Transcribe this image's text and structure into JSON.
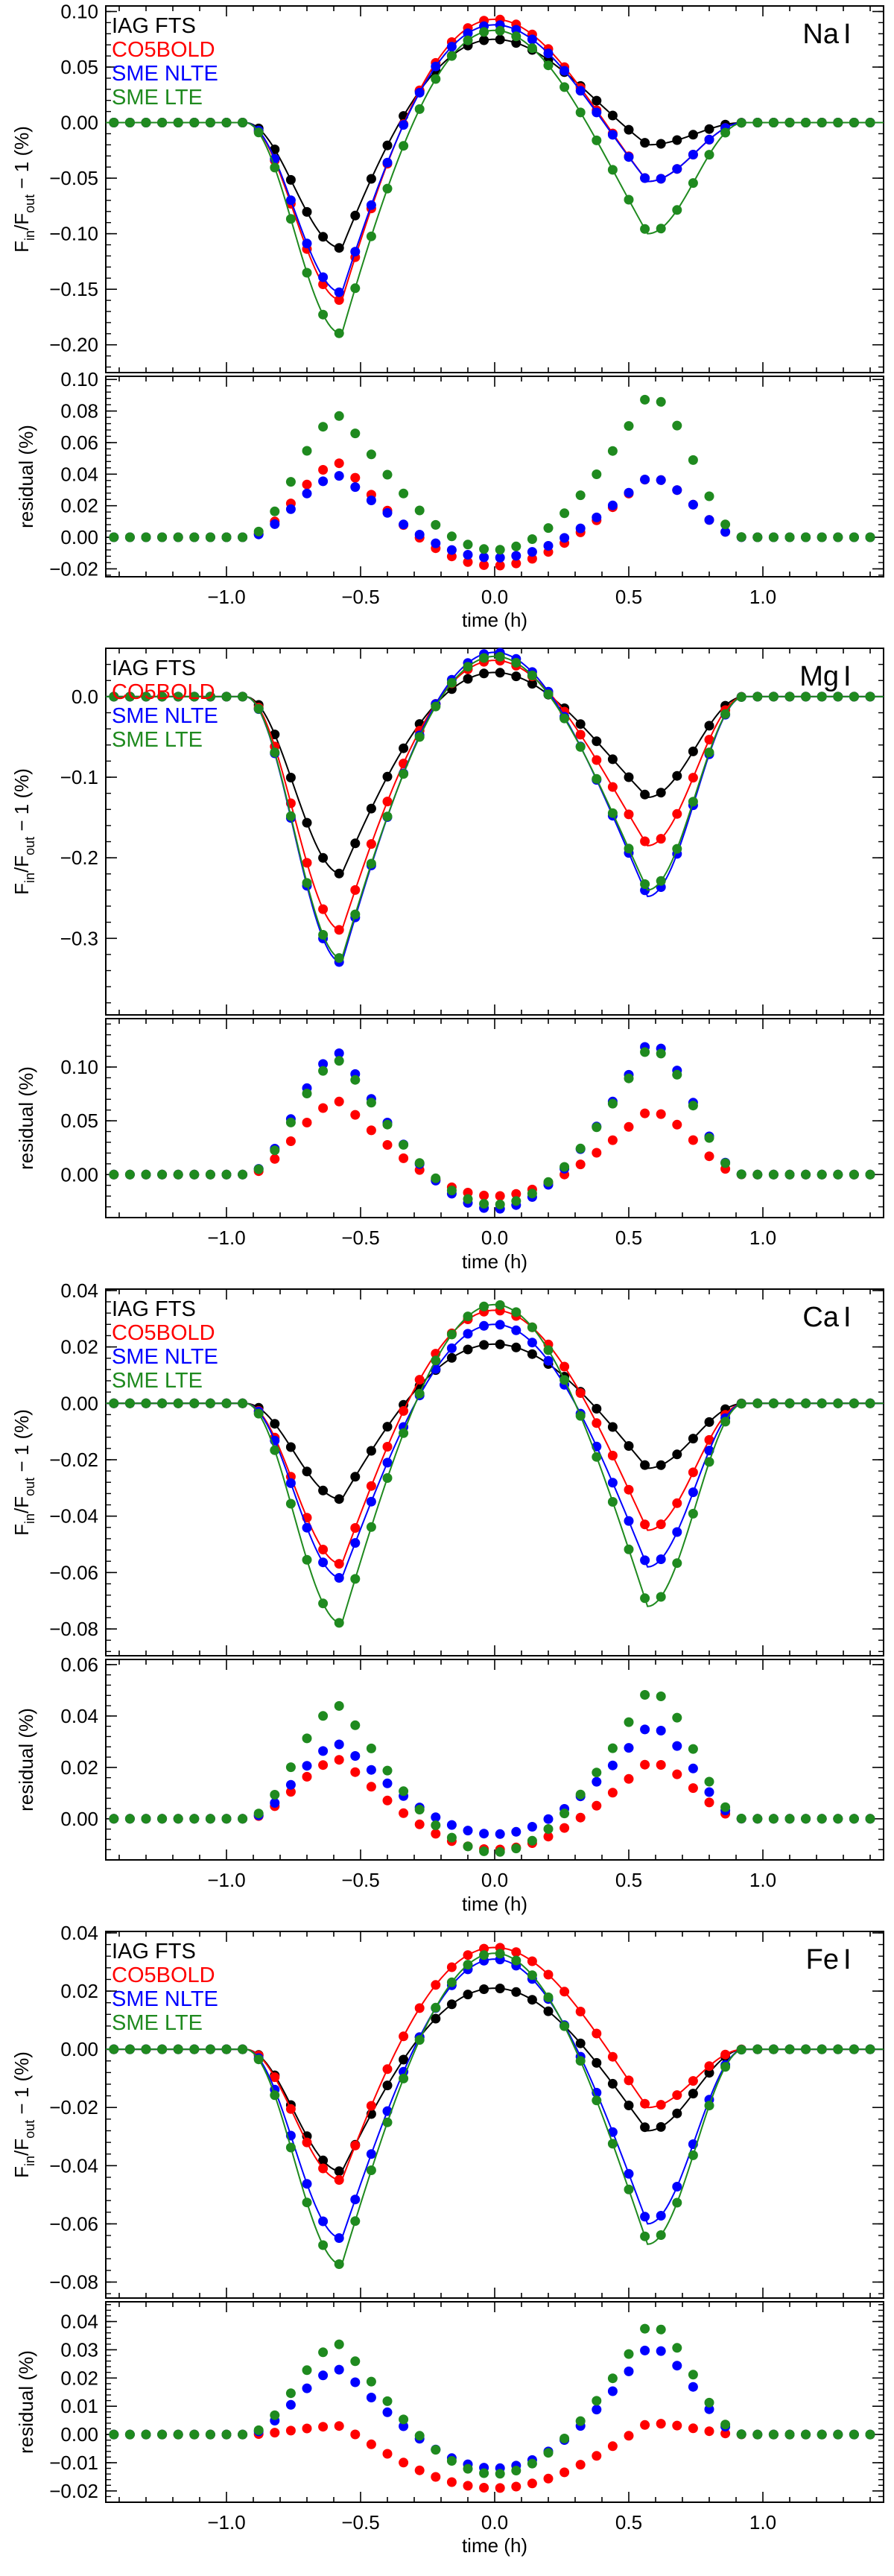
{
  "colors": {
    "IAG FTS": "#000000",
    "CO5BOLD": "#ff0000",
    "SME NLTE": "#0000ff",
    "SME LTE": "#1f8a1f"
  },
  "chart_data": [
    {
      "type": "line",
      "element": "Na I",
      "element_label": "Na",
      "element_suffix": "I",
      "title": "",
      "legend": [
        "IAG FTS",
        "CO5BOLD",
        "SME NLTE",
        "SME LTE"
      ],
      "legend_position": "top-left",
      "xlabel": "time (h)",
      "xlim": [
        -1.45,
        1.45
      ],
      "xticks": [
        -1.0,
        -0.5,
        0.0,
        0.5,
        1.0
      ],
      "xtick_labels": [
        "−1.0",
        "−0.5",
        "0.0",
        "0.5",
        "1.0"
      ],
      "top": {
        "ylabel": "F_in/F_out − 1 (%)",
        "ylim": [
          -0.225,
          0.105
        ],
        "yticks": [
          0.1,
          0.05,
          0.0,
          -0.05,
          -0.1,
          -0.15,
          -0.2
        ],
        "ytick_labels": [
          "0.10",
          "0.05",
          "0.00",
          "−0.05",
          "−0.10",
          "−0.15",
          "−0.20"
        ],
        "profile": {
          "IAG FTS": [
            -0.113,
            0.075,
            -0.02
          ],
          "CO5BOLD": [
            -0.16,
            0.093,
            -0.053
          ],
          "SME NLTE": [
            -0.153,
            0.088,
            -0.053
          ],
          "SME LTE": [
            -0.19,
            0.083,
            -0.1
          ]
        }
      },
      "residual": {
        "ylabel": "residual (%)",
        "ylim": [
          -0.025,
          0.102
        ],
        "yticks": [
          0.1,
          0.08,
          0.06,
          0.04,
          0.02,
          0.0,
          -0.02
        ],
        "ytick_labels": [
          "0.10",
          "0.08",
          "0.06",
          "0.04",
          "0.02",
          "0.00",
          "−0.02"
        ],
        "profile": {
          "CO5BOLD": [
            0.047,
            -0.018,
            0.038
          ],
          "SME NLTE": [
            0.039,
            -0.013,
            0.038
          ],
          "SME LTE": [
            0.077,
            -0.008,
            0.09
          ]
        }
      }
    },
    {
      "type": "line",
      "element": "Mg I",
      "element_label": "Mg",
      "element_suffix": "I",
      "title": "",
      "legend": [
        "IAG FTS",
        "CO5BOLD",
        "SME NLTE",
        "SME LTE"
      ],
      "legend_position": "top-left",
      "xlabel": "time (h)",
      "xlim": [
        -1.45,
        1.45
      ],
      "xticks": [
        -1.0,
        -0.5,
        0.0,
        0.5,
        1.0
      ],
      "xtick_labels": [
        "−1.0",
        "−0.5",
        "0.0",
        "0.5",
        "1.0"
      ],
      "top": {
        "ylabel": "F_in/F_out − 1 (%)",
        "ylim": [
          -0.395,
          0.06
        ],
        "yticks": [
          0.0,
          -0.1,
          -0.2,
          -0.3
        ],
        "ytick_labels": [
          "0.0",
          "−0.1",
          "−0.2",
          "−0.3"
        ],
        "profile": {
          "IAG FTS": [
            -0.22,
            0.03,
            -0.125
          ],
          "CO5BOLD": [
            -0.29,
            0.045,
            -0.185
          ],
          "SME NLTE": [
            -0.33,
            0.055,
            -0.248
          ],
          "SME LTE": [
            -0.325,
            0.05,
            -0.24
          ]
        }
      },
      "residual": {
        "ylabel": "residual (%)",
        "ylim": [
          -0.04,
          0.145
        ],
        "yticks": [
          0.1,
          0.05,
          0.0
        ],
        "ytick_labels": [
          "0.10",
          "0.05",
          "0.00"
        ],
        "profile": {
          "CO5BOLD": [
            0.068,
            -0.02,
            0.059
          ],
          "SME NLTE": [
            0.113,
            -0.032,
            0.123
          ],
          "SME LTE": [
            0.106,
            -0.028,
            0.118
          ]
        }
      }
    },
    {
      "type": "line",
      "element": "Ca I",
      "element_label": "Ca",
      "element_suffix": "I",
      "title": "",
      "legend": [
        "IAG FTS",
        "CO5BOLD",
        "SME NLTE",
        "SME LTE"
      ],
      "legend_position": "top-left",
      "xlabel": "time (h)",
      "xlim": [
        -1.45,
        1.45
      ],
      "xticks": [
        -1.0,
        -0.5,
        0.0,
        0.5,
        1.0
      ],
      "xtick_labels": [
        "−1.0",
        "−0.5",
        "0.0",
        "0.5",
        "1.0"
      ],
      "top": {
        "ylabel": "F_in/F_out − 1 (%)",
        "ylim": [
          -0.0895,
          0.0405
        ],
        "yticks": [
          0.04,
          0.02,
          0.0,
          -0.02,
          -0.04,
          -0.06,
          -0.08
        ],
        "ytick_labels": [
          "0.04",
          "0.02",
          "0.00",
          "−0.02",
          "−0.04",
          "−0.06",
          "−0.08"
        ],
        "profile": {
          "IAG FTS": [
            -0.034,
            0.021,
            -0.023
          ],
          "CO5BOLD": [
            -0.057,
            0.033,
            -0.045
          ],
          "SME NLTE": [
            -0.062,
            0.028,
            -0.058
          ],
          "SME LTE": [
            -0.078,
            0.035,
            -0.072
          ]
        }
      },
      "residual": {
        "ylabel": "residual (%)",
        "ylim": [
          -0.016,
          0.062
        ],
        "yticks": [
          0.06,
          0.04,
          0.02,
          0.0
        ],
        "ytick_labels": [
          "0.06",
          "0.04",
          "0.02",
          "0.00"
        ],
        "profile": {
          "CO5BOLD": [
            0.023,
            -0.012,
            0.022
          ],
          "SME NLTE": [
            0.029,
            -0.006,
            0.036
          ],
          "SME LTE": [
            0.044,
            -0.013,
            0.05
          ]
        }
      }
    },
    {
      "type": "line",
      "element": "Fe I",
      "element_label": "Fe",
      "element_suffix": "I",
      "title": "",
      "legend": [
        "IAG FTS",
        "CO5BOLD",
        "SME NLTE",
        "SME LTE"
      ],
      "legend_position": "top-left",
      "xlabel": "time (h)",
      "xlim": [
        -1.45,
        1.45
      ],
      "xticks": [
        -1.0,
        -0.5,
        0.0,
        0.5,
        1.0
      ],
      "xtick_labels": [
        "−1.0",
        "−0.5",
        "0.0",
        "0.5",
        "1.0"
      ],
      "top": {
        "ylabel": "F_in/F_out − 1 (%)",
        "ylim": [
          -0.0855,
          0.0405
        ],
        "yticks": [
          0.04,
          0.02,
          0.0,
          -0.02,
          -0.04,
          -0.06,
          -0.08
        ],
        "ytick_labels": [
          "0.04",
          "0.02",
          "0.00",
          "−0.02",
          "−0.04",
          "−0.06",
          "−0.08"
        ],
        "profile": {
          "IAG FTS": [
            -0.042,
            0.021,
            -0.028
          ],
          "CO5BOLD": [
            -0.045,
            0.035,
            -0.02
          ],
          "SME NLTE": [
            -0.065,
            0.031,
            -0.06
          ],
          "SME LTE": [
            -0.074,
            0.033,
            -0.067
          ]
        }
      },
      "residual": {
        "ylabel": "residual (%)",
        "ylim": [
          -0.024,
          0.047
        ],
        "yticks": [
          0.04,
          0.03,
          0.02,
          0.01,
          0.0,
          -0.01,
          -0.02
        ],
        "ytick_labels": [
          "0.04",
          "0.03",
          "0.02",
          "0.01",
          "0.00",
          "−0.01",
          "−0.02"
        ],
        "profile": {
          "CO5BOLD": [
            0.003,
            -0.019,
            0.004
          ],
          "SME NLTE": [
            0.023,
            -0.012,
            0.031
          ],
          "SME LTE": [
            0.032,
            -0.014,
            0.039
          ]
        }
      }
    }
  ]
}
